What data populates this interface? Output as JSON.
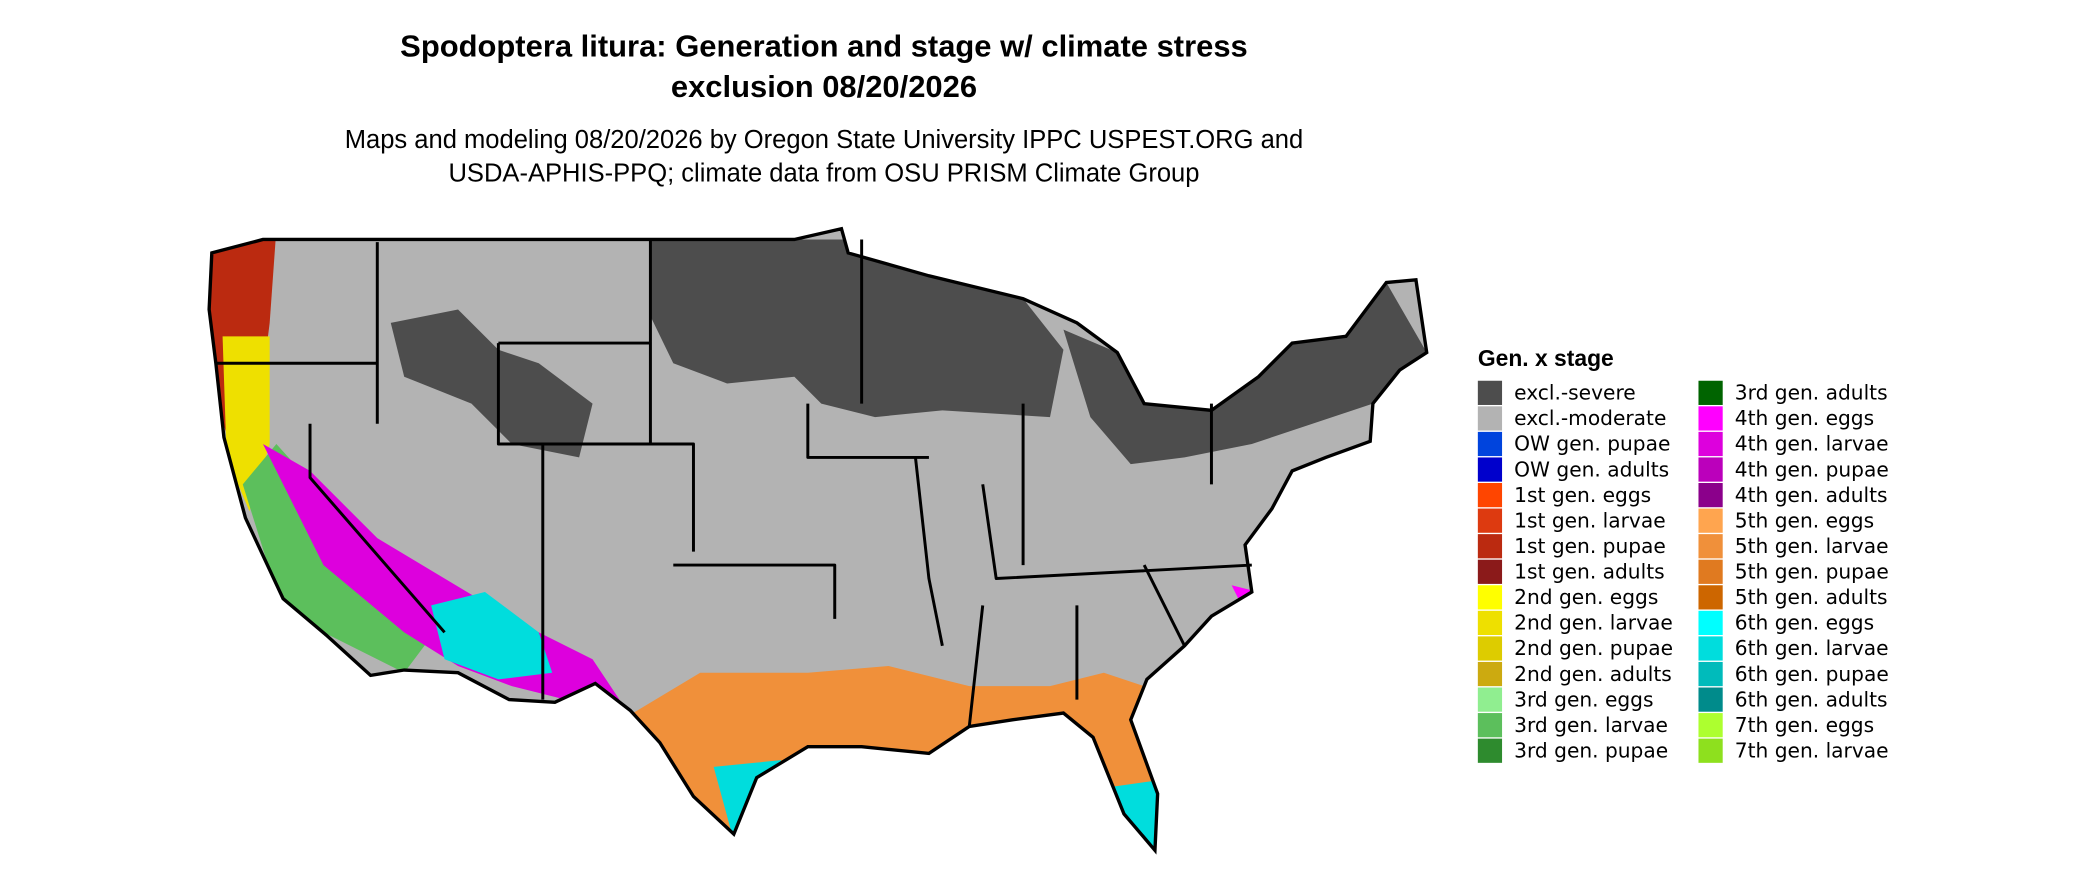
{
  "title": [
    "Spodoptera litura: Generation and stage w/ climate stress",
    "exclusion 08/20/2026"
  ],
  "subtitle": [
    "Maps and modeling 08/20/2026 by Oregon State University IPPC USPEST.ORG and",
    "USDA-APHIS-PPQ; climate data from OSU PRISM Climate Group"
  ],
  "legend": {
    "title": "Gen. x stage",
    "items": [
      {
        "label": "excl.-severe",
        "color": "#4d4d4d"
      },
      {
        "label": "excl.-moderate",
        "color": "#b3b3b3"
      },
      {
        "label": "OW gen. pupae",
        "color": "#0044dd"
      },
      {
        "label": "OW gen. adults",
        "color": "#0000cc"
      },
      {
        "label": "1st gen. eggs",
        "color": "#ff4500"
      },
      {
        "label": "1st gen. larvae",
        "color": "#dd3a10"
      },
      {
        "label": "1st gen. pupae",
        "color": "#bb2a10"
      },
      {
        "label": "1st gen. adults",
        "color": "#8b1a1a"
      },
      {
        "label": "2nd gen. eggs",
        "color": "#ffff00"
      },
      {
        "label": "2nd gen. larvae",
        "color": "#eee000"
      },
      {
        "label": "2nd gen. pupae",
        "color": "#ddcc00"
      },
      {
        "label": "2nd gen. adults",
        "color": "#ccaa10"
      },
      {
        "label": "3rd gen. eggs",
        "color": "#90ee90"
      },
      {
        "label": "3rd gen. larvae",
        "color": "#5cbf5c"
      },
      {
        "label": "3rd gen. pupae",
        "color": "#2e8b2e"
      },
      {
        "label": "3rd gen. adults",
        "color": "#006400"
      },
      {
        "label": "4th gen. eggs",
        "color": "#ff00ff"
      },
      {
        "label": "4th gen. larvae",
        "color": "#dd00dd"
      },
      {
        "label": "4th gen. pupae",
        "color": "#bb00bb"
      },
      {
        "label": "4th gen. adults",
        "color": "#8b008b"
      },
      {
        "label": "5th gen. eggs",
        "color": "#ffa54f"
      },
      {
        "label": "5th gen. larvae",
        "color": "#f0903a"
      },
      {
        "label": "5th gen. pupae",
        "color": "#e07a20"
      },
      {
        "label": "5th gen. adults",
        "color": "#cd6600"
      },
      {
        "label": "6th gen. eggs",
        "color": "#00ffff"
      },
      {
        "label": "6th gen. larvae",
        "color": "#00dddd"
      },
      {
        "label": "6th gen. pupae",
        "color": "#00bbbb"
      },
      {
        "label": "6th gen. adults",
        "color": "#008b8b"
      },
      {
        "label": "7th gen. eggs",
        "color": "#adff2f"
      },
      {
        "label": "7th gen. larvae",
        "color": "#8ee01e"
      }
    ]
  }
}
